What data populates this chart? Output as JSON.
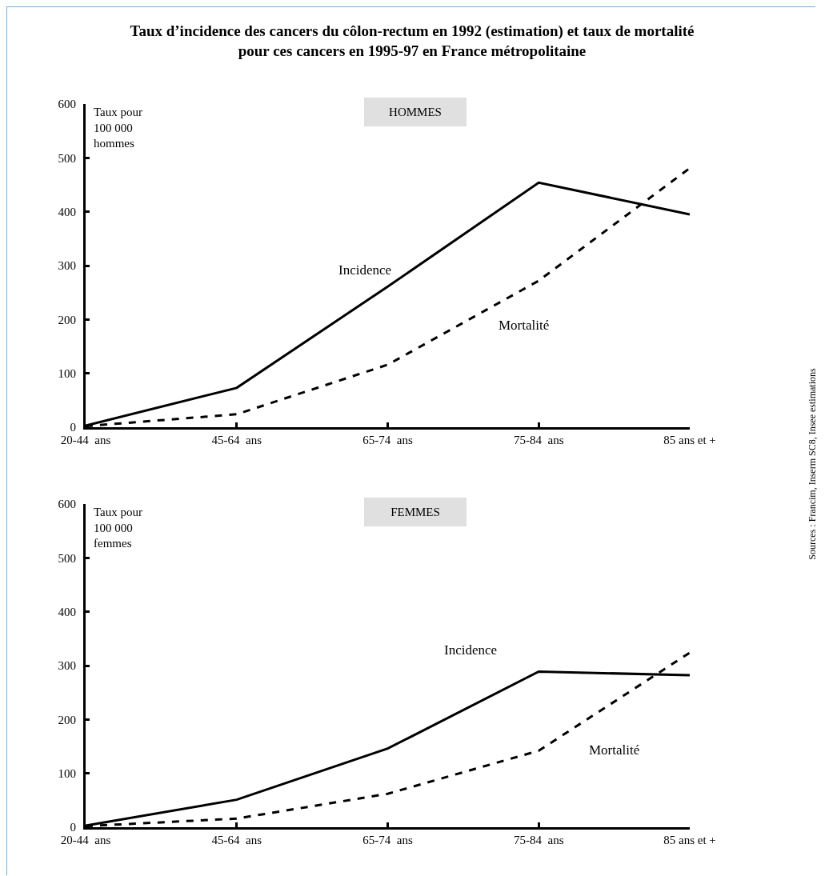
{
  "chart_data": [
    {
      "type": "line",
      "title": "Taux d’incidence des cancers du côlon-rectum en 1992 (estimation) et taux de mortalité pour ces cancers en 1995-97 en France métropolitaine",
      "subtitle": "HOMMES",
      "ylabel": "Taux pour 100 000 hommes",
      "categories": [
        "20-44  ans",
        "45-64  ans",
        "65-74  ans",
        "75-84  ans",
        "85 ans et +"
      ],
      "series": [
        {
          "name": "Incidence",
          "color": "#000000",
          "line_style": "solid",
          "values": [
            3,
            73,
            261,
            454,
            395
          ]
        },
        {
          "name": "Mortalité",
          "color": "#000000",
          "line_style": "dashed",
          "values": [
            2,
            24,
            116,
            272,
            481
          ]
        }
      ],
      "ylim": [
        0,
        600
      ],
      "yticks": [
        0,
        100,
        200,
        300,
        400,
        500,
        600
      ],
      "marker": "none",
      "annotations": [
        "Sources : Francim, Inserm SC8, Insee estimations"
      ]
    },
    {
      "type": "line",
      "subtitle": "FEMMES",
      "ylabel": "Taux pour 100 000 femmes",
      "categories": [
        "20-44  ans",
        "45-64  ans",
        "65-74  ans",
        "75-84  ans",
        "85 ans et +"
      ],
      "series": [
        {
          "name": "Incidence",
          "color": "#000000",
          "line_style": "solid",
          "values": [
            3,
            51,
            146,
            289,
            282
          ]
        },
        {
          "name": "Mortalité",
          "color": "#000000",
          "line_style": "dashed",
          "values": [
            2,
            16,
            62,
            142,
            324
          ]
        }
      ],
      "ylim": [
        0,
        600
      ],
      "yticks": [
        0,
        100,
        200,
        300,
        400,
        500,
        600
      ],
      "marker": "none"
    }
  ]
}
